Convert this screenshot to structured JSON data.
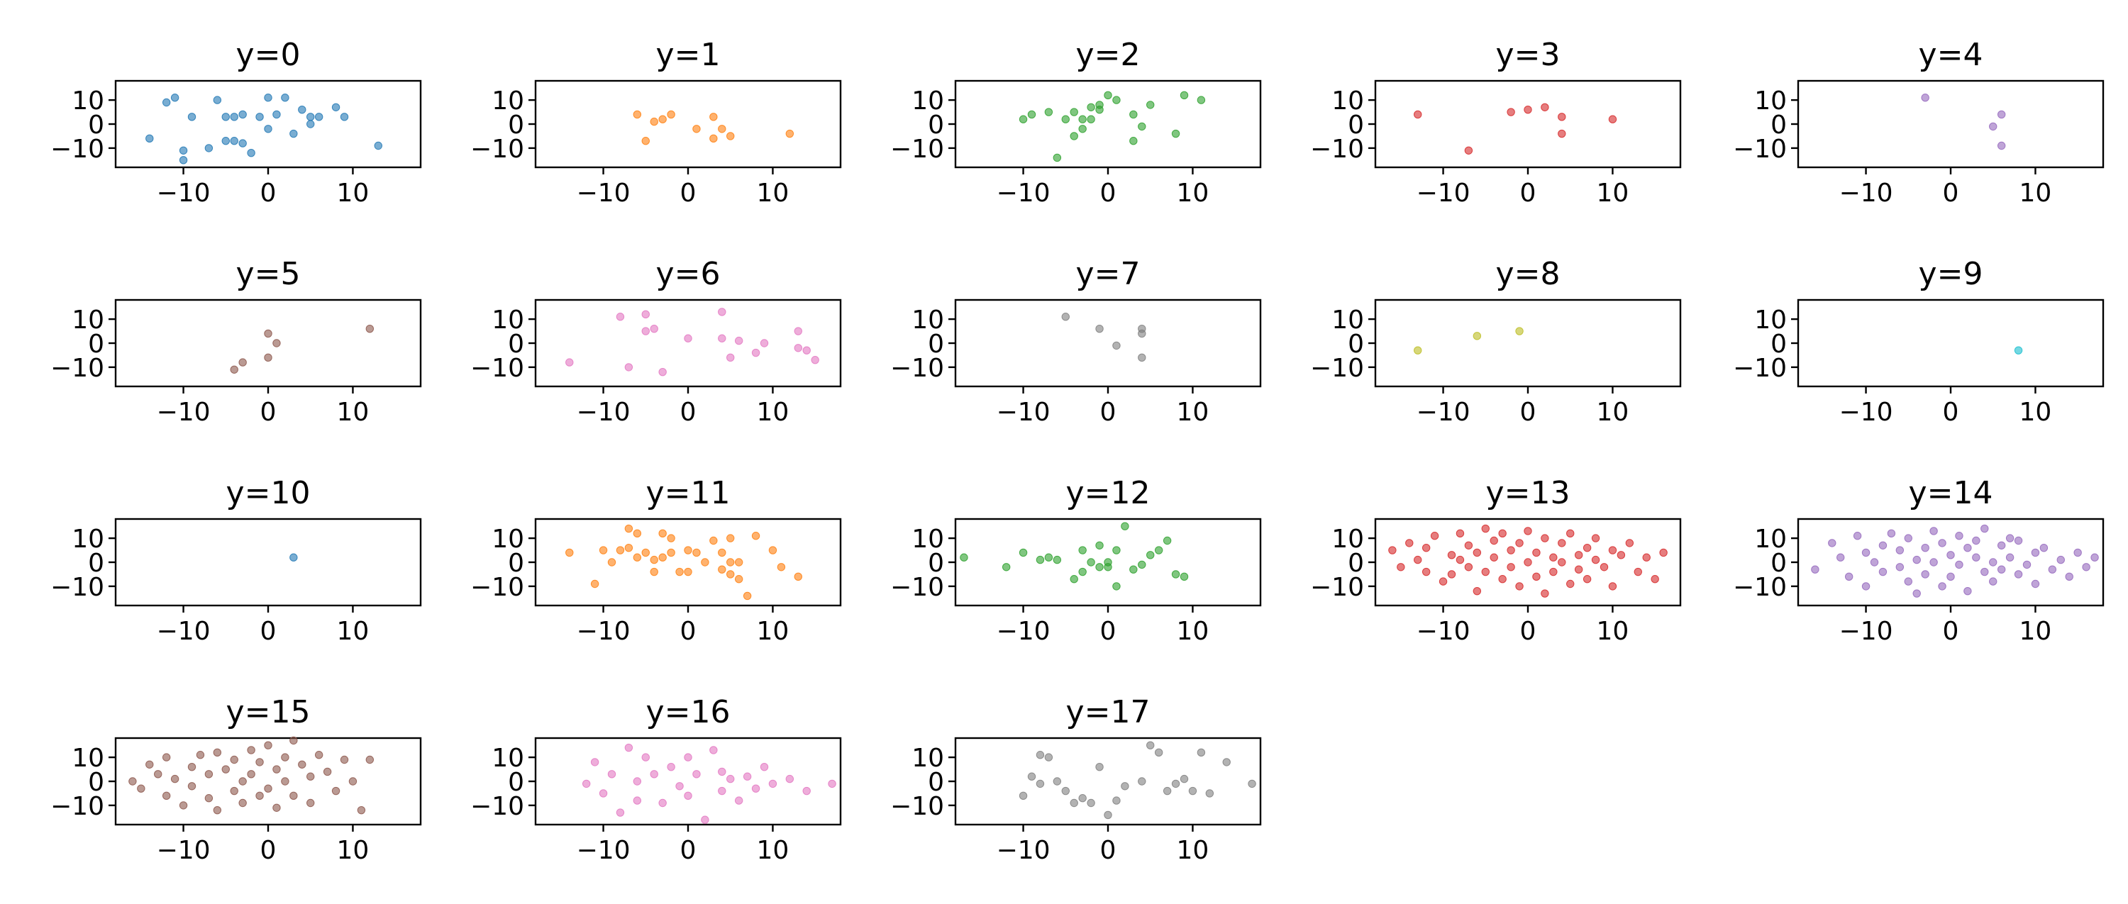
{
  "chart_data": {
    "type": "scatter",
    "title": "",
    "xlabel": "",
    "ylabel": "",
    "xlim": [
      -18,
      18
    ],
    "ylim": [
      -18,
      18
    ],
    "xticks": [
      -10,
      0,
      10
    ],
    "yticks": [
      10,
      0,
      -10
    ],
    "grid": false,
    "series": [
      {
        "name": "y=0",
        "color": "#1f77b4",
        "x": [
          -14,
          -12,
          -11,
          -10,
          -10,
          -9,
          -7,
          -6,
          -5,
          -5,
          -4,
          -4,
          -3,
          -3,
          -2,
          -1,
          0,
          0,
          1,
          2,
          3,
          4,
          5,
          5,
          6,
          8,
          9,
          13
        ],
        "y": [
          -6,
          9,
          11,
          -11,
          -15,
          3,
          -10,
          10,
          -7,
          3,
          -7,
          3,
          -8,
          4,
          -12,
          3,
          11,
          -2,
          4,
          11,
          -4,
          6,
          3,
          0,
          3,
          7,
          3,
          -9
        ]
      },
      {
        "name": "y=1",
        "color": "#ff7f0e",
        "x": [
          -6,
          -5,
          -4,
          -3,
          -2,
          1,
          3,
          3,
          4,
          5,
          12
        ],
        "y": [
          4,
          -7,
          1,
          2,
          4,
          -2,
          3,
          -6,
          -2,
          -5,
          -4
        ]
      },
      {
        "name": "y=2",
        "color": "#2ca02c",
        "x": [
          -10,
          -9,
          -7,
          -6,
          -5,
          -4,
          -4,
          -3,
          -3,
          -2,
          -2,
          -1,
          -1,
          0,
          1,
          3,
          3,
          4,
          5,
          8,
          9,
          11
        ],
        "y": [
          2,
          4,
          5,
          -14,
          2,
          -5,
          5,
          -2,
          2,
          2,
          7,
          6,
          8,
          12,
          10,
          -7,
          4,
          -1,
          8,
          -4,
          12,
          10
        ]
      },
      {
        "name": "y=3",
        "color": "#d62728",
        "x": [
          -13,
          -7,
          -2,
          0,
          2,
          4,
          4,
          10
        ],
        "y": [
          4,
          -11,
          5,
          6,
          7,
          3,
          -4,
          2
        ]
      },
      {
        "name": "y=4",
        "color": "#9467bd",
        "x": [
          -3,
          5,
          6,
          6
        ],
        "y": [
          11,
          -1,
          4,
          -9
        ]
      },
      {
        "name": "y=5",
        "color": "#8c564b",
        "x": [
          -4,
          -3,
          0,
          0,
          1,
          12
        ],
        "y": [
          -11,
          -8,
          4,
          -6,
          0,
          6
        ]
      },
      {
        "name": "y=6",
        "color": "#e377c2",
        "x": [
          -14,
          -8,
          -7,
          -5,
          -5,
          -4,
          -3,
          0,
          4,
          4,
          5,
          6,
          8,
          9,
          13,
          13,
          14,
          15
        ],
        "y": [
          -8,
          11,
          -10,
          12,
          5,
          6,
          -12,
          2,
          2,
          13,
          -6,
          1,
          -4,
          0,
          5,
          -2,
          -3,
          -7
        ]
      },
      {
        "name": "y=7",
        "color": "#7f7f7f",
        "x": [
          -5,
          -1,
          1,
          4,
          4,
          4
        ],
        "y": [
          11,
          6,
          -1,
          4,
          6,
          -6
        ]
      },
      {
        "name": "y=8",
        "color": "#bcbd22",
        "x": [
          -13,
          -6,
          -1
        ],
        "y": [
          -3,
          3,
          5
        ]
      },
      {
        "name": "y=9",
        "color": "#17becf",
        "x": [
          8
        ],
        "y": [
          -3
        ]
      },
      {
        "name": "y=10",
        "color": "#1f77b4",
        "x": [
          3
        ],
        "y": [
          2
        ]
      },
      {
        "name": "y=11",
        "color": "#ff7f0e",
        "x": [
          -14,
          -11,
          -10,
          -9,
          -8,
          -7,
          -7,
          -6,
          -6,
          -5,
          -4,
          -4,
          -3,
          -3,
          -2,
          -2,
          -1,
          0,
          0,
          1,
          2,
          3,
          4,
          4,
          5,
          5,
          5,
          6,
          6,
          7,
          8,
          10,
          11,
          13
        ],
        "y": [
          4,
          -9,
          5,
          0,
          5,
          14,
          6,
          2,
          12,
          4,
          -4,
          1,
          12,
          2,
          4,
          10,
          -4,
          5,
          -4,
          4,
          0,
          9,
          -3,
          4,
          -5,
          0,
          10,
          0,
          -7,
          -14,
          11,
          5,
          -2,
          -6
        ]
      },
      {
        "name": "y=12",
        "color": "#2ca02c",
        "x": [
          -17,
          -12,
          -10,
          -8,
          -7,
          -6,
          -4,
          -3,
          -3,
          -2,
          -1,
          -1,
          0,
          0,
          1,
          1,
          2,
          3,
          4,
          5,
          6,
          7,
          8,
          9
        ],
        "y": [
          2,
          -2,
          4,
          1,
          2,
          1,
          -7,
          5,
          -4,
          0,
          7,
          -2,
          0,
          -2,
          5,
          -10,
          15,
          -3,
          -1,
          3,
          5,
          9,
          -5,
          -6
        ]
      },
      {
        "name": "y=13",
        "color": "#d62728",
        "x": [
          -16,
          -15,
          -14,
          -13,
          -12,
          -12,
          -11,
          -10,
          -9,
          -9,
          -8,
          -8,
          -7,
          -7,
          -6,
          -6,
          -5,
          -5,
          -4,
          -4,
          -3,
          -3,
          -2,
          -2,
          -1,
          -1,
          0,
          0,
          1,
          1,
          2,
          2,
          3,
          3,
          4,
          4,
          5,
          5,
          6,
          6,
          7,
          7,
          8,
          8,
          9,
          10,
          10,
          11,
          12,
          13,
          14,
          15,
          16
        ],
        "y": [
          5,
          -2,
          8,
          1,
          -4,
          6,
          11,
          -8,
          3,
          -5,
          12,
          1,
          -2,
          7,
          -12,
          4,
          14,
          -4,
          2,
          9,
          -7,
          12,
          -2,
          5,
          8,
          -10,
          0,
          13,
          -6,
          4,
          10,
          -13,
          2,
          -4,
          8,
          0,
          -9,
          12,
          3,
          -3,
          6,
          -7,
          10,
          1,
          -2,
          5,
          -10,
          3,
          8,
          -4,
          2,
          -7,
          4
        ]
      },
      {
        "name": "y=14",
        "color": "#9467bd",
        "x": [
          -16,
          -14,
          -13,
          -12,
          -11,
          -10,
          -10,
          -9,
          -8,
          -8,
          -7,
          -6,
          -6,
          -5,
          -5,
          -4,
          -4,
          -3,
          -3,
          -2,
          -2,
          -1,
          -1,
          0,
          0,
          1,
          1,
          2,
          2,
          3,
          3,
          4,
          4,
          5,
          5,
          6,
          6,
          7,
          7,
          8,
          8,
          9,
          10,
          10,
          11,
          12,
          13,
          14,
          15,
          16,
          17
        ],
        "y": [
          -3,
          8,
          2,
          -6,
          11,
          4,
          -10,
          0,
          7,
          -4,
          12,
          -2,
          5,
          -8,
          10,
          1,
          -13,
          6,
          -5,
          13,
          0,
          -10,
          8,
          3,
          -6,
          11,
          -1,
          6,
          -12,
          2,
          9,
          -4,
          14,
          0,
          -8,
          7,
          -3,
          10,
          2,
          -5,
          9,
          -1,
          4,
          -9,
          6,
          -3,
          1,
          -6,
          4,
          -2,
          2
        ]
      },
      {
        "name": "y=15",
        "color": "#8c564b",
        "x": [
          -16,
          -15,
          -14,
          -13,
          -12,
          -12,
          -11,
          -10,
          -9,
          -9,
          -8,
          -7,
          -7,
          -6,
          -6,
          -5,
          -4,
          -4,
          -3,
          -3,
          -2,
          -2,
          -1,
          -1,
          0,
          0,
          1,
          1,
          2,
          2,
          3,
          3,
          4,
          5,
          5,
          6,
          7,
          8,
          9,
          10,
          11,
          12
        ],
        "y": [
          0,
          -3,
          7,
          3,
          -6,
          10,
          1,
          -10,
          6,
          -2,
          11,
          -7,
          3,
          12,
          -12,
          5,
          -4,
          9,
          0,
          -9,
          13,
          3,
          -6,
          8,
          15,
          -3,
          5,
          -11,
          10,
          0,
          17,
          -6,
          7,
          2,
          -9,
          11,
          4,
          -4,
          9,
          0,
          -12,
          9
        ]
      },
      {
        "name": "y=16",
        "color": "#e377c2",
        "x": [
          -12,
          -11,
          -10,
          -9,
          -8,
          -7,
          -6,
          -6,
          -5,
          -4,
          -3,
          -2,
          -1,
          0,
          0,
          1,
          2,
          3,
          4,
          4,
          5,
          6,
          7,
          8,
          9,
          10,
          12,
          14,
          17
        ],
        "y": [
          -1,
          8,
          -5,
          3,
          -13,
          14,
          0,
          -8,
          10,
          3,
          -9,
          6,
          -2,
          10,
          -6,
          3,
          -16,
          13,
          -4,
          4,
          1,
          -8,
          2,
          -3,
          6,
          -1,
          1,
          -4,
          -1
        ]
      },
      {
        "name": "y=17",
        "color": "#7f7f7f",
        "x": [
          -10,
          -9,
          -8,
          -8,
          -7,
          -6,
          -5,
          -4,
          -3,
          -2,
          -1,
          0,
          1,
          2,
          4,
          5,
          6,
          7,
          8,
          9,
          10,
          11,
          12,
          14,
          17
        ],
        "y": [
          -6,
          2,
          11,
          -1,
          10,
          0,
          -4,
          -9,
          -7,
          -9,
          6,
          -14,
          -8,
          -2,
          0,
          15,
          12,
          -4,
          -1,
          1,
          -4,
          12,
          -5,
          8,
          -1
        ]
      }
    ]
  }
}
